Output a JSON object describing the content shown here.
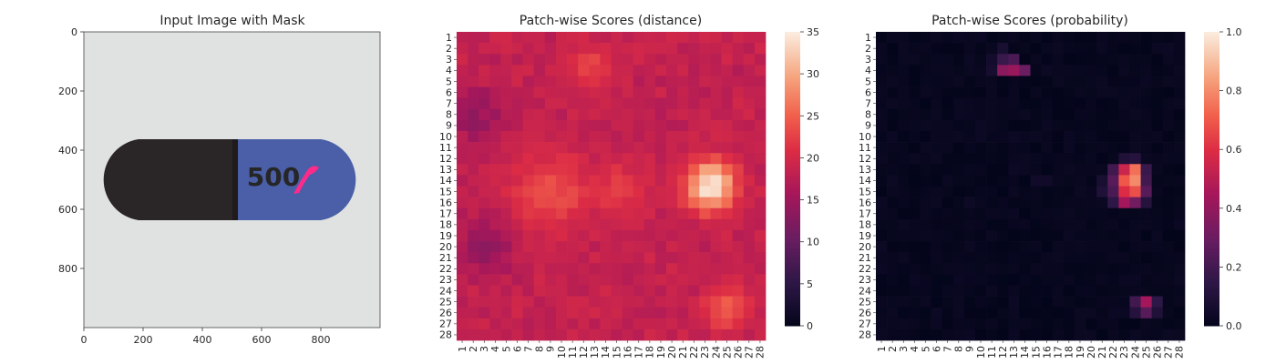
{
  "panels": {
    "image": {
      "title": "Input Image with Mask",
      "pill_text": "500"
    },
    "distance": {
      "title": "Patch-wise Scores (distance)"
    },
    "probability": {
      "title": "Patch-wise Scores (probability)"
    }
  },
  "colors": {
    "pill_black": "#2a2526",
    "pill_blue": "#4a5fa8",
    "background": "#dfe2e1",
    "mask": "#ff2a8a"
  },
  "chart_data": [
    {
      "type": "image",
      "title": "Input Image with Mask",
      "xticks": [
        0,
        200,
        400,
        600,
        800
      ],
      "yticks": [
        0,
        200,
        400,
        600,
        800
      ],
      "xlim": [
        0,
        1000
      ],
      "ylim": [
        1000,
        0
      ]
    },
    {
      "type": "heatmap",
      "title": "Patch-wise Scores (distance)",
      "rows": 28,
      "cols": 28,
      "row_labels": [
        "1",
        "2",
        "3",
        "4",
        "5",
        "6",
        "7",
        "8",
        "9",
        "10",
        "11",
        "12",
        "13",
        "14",
        "15",
        "16",
        "17",
        "18",
        "19",
        "20",
        "21",
        "22",
        "23",
        "24",
        "25",
        "26",
        "27",
        "28"
      ],
      "col_labels": [
        "1",
        "2",
        "3",
        "4",
        "5",
        "6",
        "7",
        "8",
        "9",
        "10",
        "11",
        "12",
        "13",
        "14",
        "15",
        "16",
        "17",
        "18",
        "19",
        "20",
        "21",
        "22",
        "23",
        "24",
        "25",
        "26",
        "27",
        "28"
      ],
      "colorbar": {
        "min": 0,
        "max": 35,
        "ticks": [
          "0",
          "5",
          "10",
          "15",
          "20",
          "25",
          "30",
          "35"
        ]
      },
      "colormap": "rocket",
      "base_value": 18,
      "hotspots": [
        {
          "row": 3.5,
          "col": 12.5,
          "value": 23,
          "radius": 2.0
        },
        {
          "row": 15.0,
          "col": 9.0,
          "value": 24,
          "radius": 3.5
        },
        {
          "row": 15.0,
          "col": 15.0,
          "value": 22,
          "radius": 3.0
        },
        {
          "row": 14.5,
          "col": 23.5,
          "value": 35,
          "radius": 2.2
        },
        {
          "row": 25.5,
          "col": 25.0,
          "value": 25,
          "radius": 2.0
        }
      ],
      "lowspots": [
        {
          "row": 8.0,
          "col": 2.0,
          "value": 14,
          "radius": 2.5
        },
        {
          "row": 20.0,
          "col": 3.0,
          "value": 14,
          "radius": 2.5
        }
      ]
    },
    {
      "type": "heatmap",
      "title": "Patch-wise Scores (probability)",
      "rows": 28,
      "cols": 28,
      "row_labels": [
        "1",
        "2",
        "3",
        "4",
        "5",
        "6",
        "7",
        "8",
        "9",
        "10",
        "11",
        "12",
        "13",
        "14",
        "15",
        "16",
        "17",
        "18",
        "19",
        "20",
        "21",
        "22",
        "23",
        "24",
        "25",
        "26",
        "27",
        "28"
      ],
      "col_labels": [
        "1",
        "2",
        "3",
        "4",
        "5",
        "6",
        "7",
        "8",
        "9",
        "10",
        "11",
        "12",
        "13",
        "14",
        "15",
        "16",
        "17",
        "18",
        "19",
        "20",
        "21",
        "22",
        "23",
        "24",
        "25",
        "26",
        "27",
        "28"
      ],
      "colorbar": {
        "min": 0.0,
        "max": 1.0,
        "ticks": [
          "0.0",
          "0.2",
          "0.4",
          "0.6",
          "0.8",
          "1.0"
        ]
      },
      "colormap": "rocket",
      "base_value": 0.0,
      "cells": [
        {
          "row": 4,
          "col": 12,
          "value": 0.38
        },
        {
          "row": 4,
          "col": 13,
          "value": 0.42
        },
        {
          "row": 4,
          "col": 14,
          "value": 0.3
        },
        {
          "row": 3,
          "col": 12,
          "value": 0.18
        },
        {
          "row": 3,
          "col": 13,
          "value": 0.22
        },
        {
          "row": 2,
          "col": 12,
          "value": 0.08
        },
        {
          "row": 3,
          "col": 11,
          "value": 0.06
        },
        {
          "row": 4,
          "col": 11,
          "value": 0.07
        },
        {
          "row": 13,
          "col": 23,
          "value": 0.55
        },
        {
          "row": 13,
          "col": 24,
          "value": 0.75
        },
        {
          "row": 14,
          "col": 23,
          "value": 0.7
        },
        {
          "row": 14,
          "col": 24,
          "value": 0.8
        },
        {
          "row": 15,
          "col": 23,
          "value": 0.6
        },
        {
          "row": 15,
          "col": 24,
          "value": 0.68
        },
        {
          "row": 16,
          "col": 23,
          "value": 0.45
        },
        {
          "row": 16,
          "col": 24,
          "value": 0.32
        },
        {
          "row": 12,
          "col": 23,
          "value": 0.1
        },
        {
          "row": 12,
          "col": 24,
          "value": 0.12
        },
        {
          "row": 13,
          "col": 22,
          "value": 0.2
        },
        {
          "row": 14,
          "col": 22,
          "value": 0.25
        },
        {
          "row": 15,
          "col": 22,
          "value": 0.22
        },
        {
          "row": 16,
          "col": 22,
          "value": 0.15
        },
        {
          "row": 13,
          "col": 25,
          "value": 0.18
        },
        {
          "row": 14,
          "col": 25,
          "value": 0.2
        },
        {
          "row": 15,
          "col": 25,
          "value": 0.25
        },
        {
          "row": 16,
          "col": 25,
          "value": 0.12
        },
        {
          "row": 14,
          "col": 21,
          "value": 0.08
        },
        {
          "row": 15,
          "col": 21,
          "value": 0.1
        },
        {
          "row": 25,
          "col": 24,
          "value": 0.2
        },
        {
          "row": 25,
          "col": 25,
          "value": 0.45
        },
        {
          "row": 26,
          "col": 25,
          "value": 0.25
        },
        {
          "row": 26,
          "col": 24,
          "value": 0.12
        },
        {
          "row": 25,
          "col": 26,
          "value": 0.15
        },
        {
          "row": 26,
          "col": 26,
          "value": 0.1
        },
        {
          "row": 14,
          "col": 15,
          "value": 0.05
        },
        {
          "row": 14,
          "col": 16,
          "value": 0.05
        },
        {
          "row": 16,
          "col": 9,
          "value": 0.04
        }
      ]
    }
  ]
}
